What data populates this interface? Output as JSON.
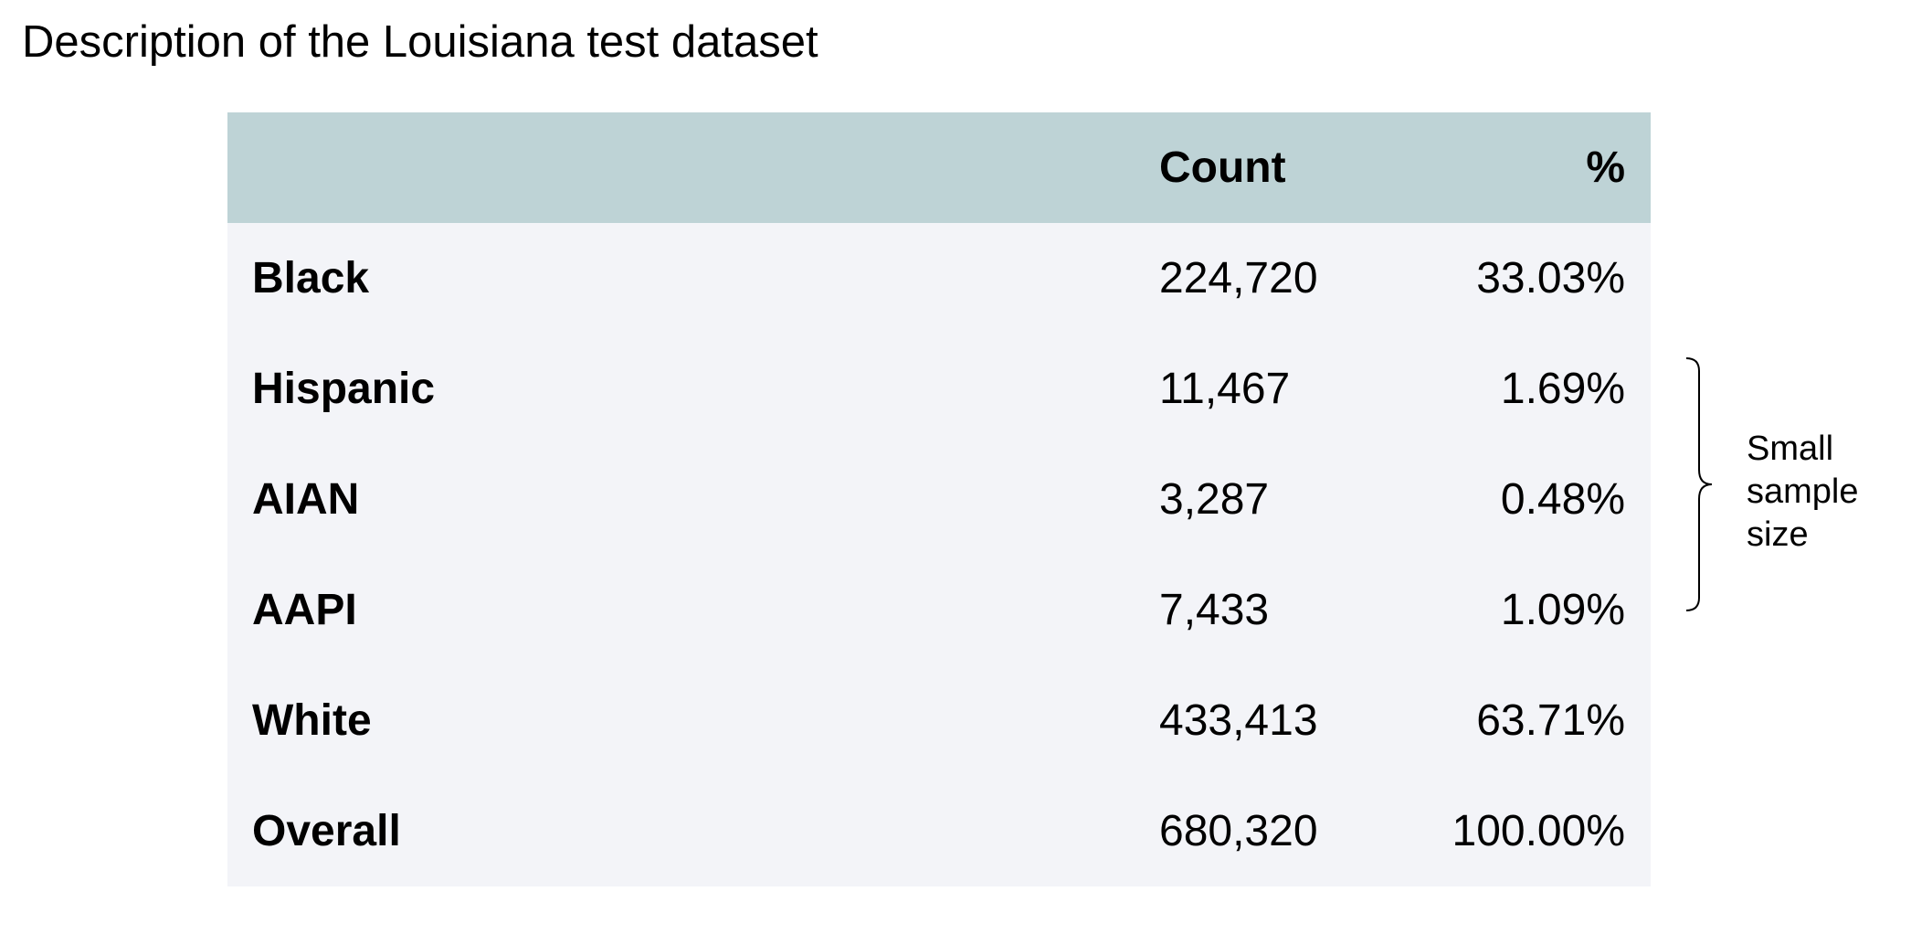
{
  "title": "Description of the Louisiana test dataset",
  "table": {
    "headers": [
      "",
      "Count",
      "%"
    ],
    "rows": [
      {
        "label": "Black",
        "count": "224,720",
        "pct": "33.03%"
      },
      {
        "label": "Hispanic",
        "count": "11,467",
        "pct": "1.69%"
      },
      {
        "label": "AIAN",
        "count": "3,287",
        "pct": "0.48%"
      },
      {
        "label": "AAPI",
        "count": "7,433",
        "pct": "1.09%"
      },
      {
        "label": "White",
        "count": "433,413",
        "pct": "63.71%"
      },
      {
        "label": "Overall",
        "count": "680,320",
        "pct": "100.00%"
      }
    ]
  },
  "annotation": {
    "lines": [
      "Small",
      "sample",
      "size"
    ]
  },
  "colors": {
    "header_bg": "#bed3d6",
    "row_bg": "#f3f4f8",
    "text": "#000000"
  }
}
